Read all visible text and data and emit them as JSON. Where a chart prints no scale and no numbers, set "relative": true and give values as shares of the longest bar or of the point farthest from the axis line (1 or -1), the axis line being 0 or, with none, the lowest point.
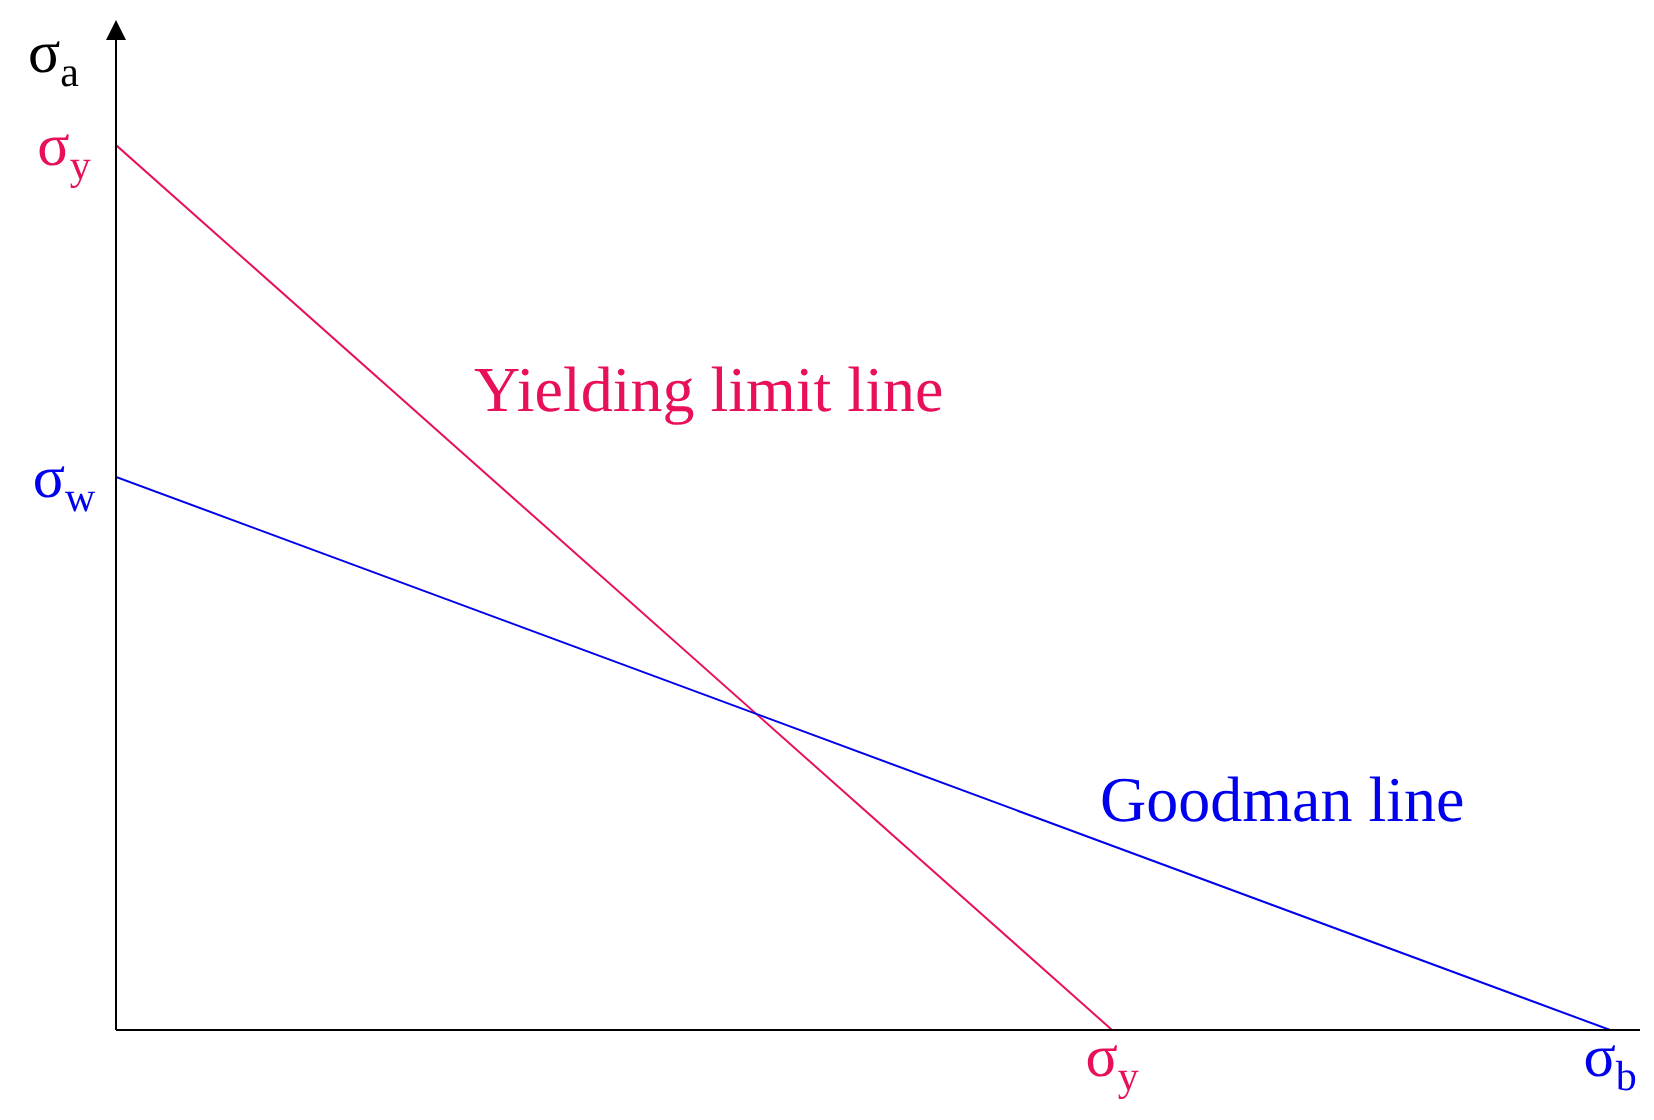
{
  "chart_data": {
    "type": "line",
    "relative": true,
    "ylabel": "σ$_{a}$",
    "categories": [
      null,
      null,
      "σ$_{y}$",
      "σ$_{b}$"
    ],
    "annotations": [
      "σ$_{y}$",
      "σ$_{w}$"
    ],
    "grid": false,
    "legend": false,
    "marker": "none",
    "line_style": "solid",
    "series": [
      {
        "name": "Yielding limit line",
        "color": "#e8105a",
        "values": [
          1,
          null,
          0,
          null
        ]
      },
      {
        "name": "Goodman line",
        "color": "#0000ee",
        "values": [
          0.625,
          null,
          null,
          0
        ]
      }
    ]
  }
}
